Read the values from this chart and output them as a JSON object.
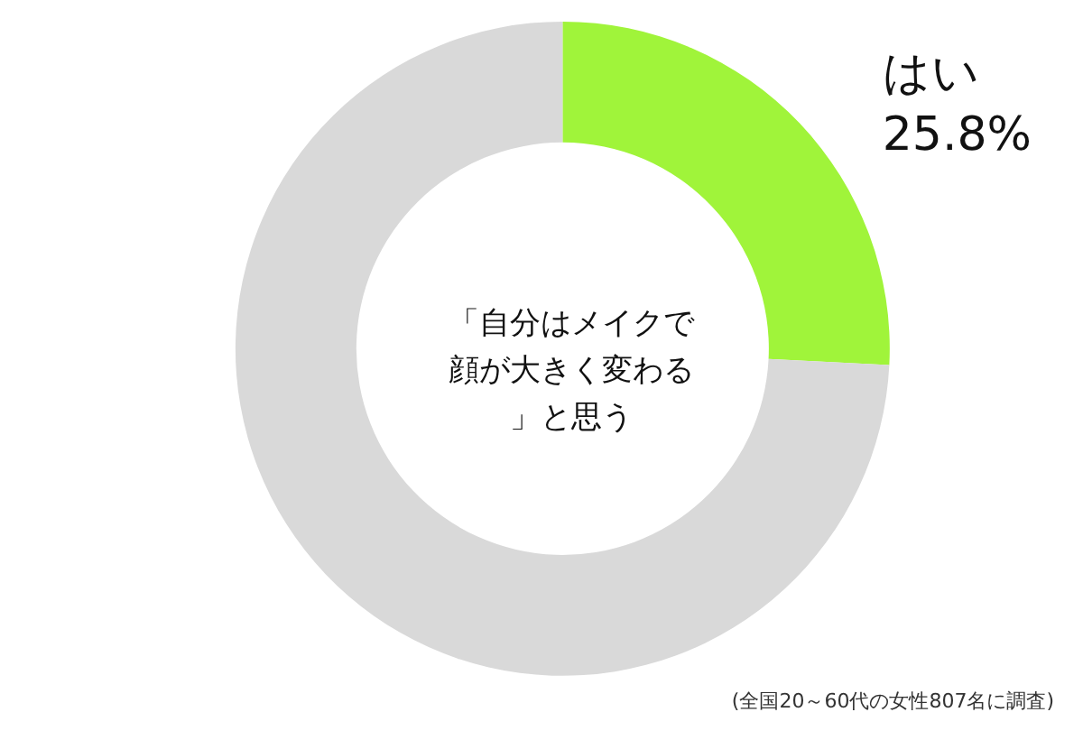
{
  "chart_data": {
    "type": "donut",
    "title": "「自分はメイクで顔が大きく変わる」と思う",
    "categories": [
      "はい",
      null
    ],
    "values": [
      25.8,
      74.2
    ],
    "value_labels": [
      "25.8%",
      null
    ],
    "colors": [
      "#a0f43a",
      "#d9d9d9"
    ],
    "legend": false,
    "annotations": [
      "(全国20～60代の女性807名に調査)"
    ]
  }
}
